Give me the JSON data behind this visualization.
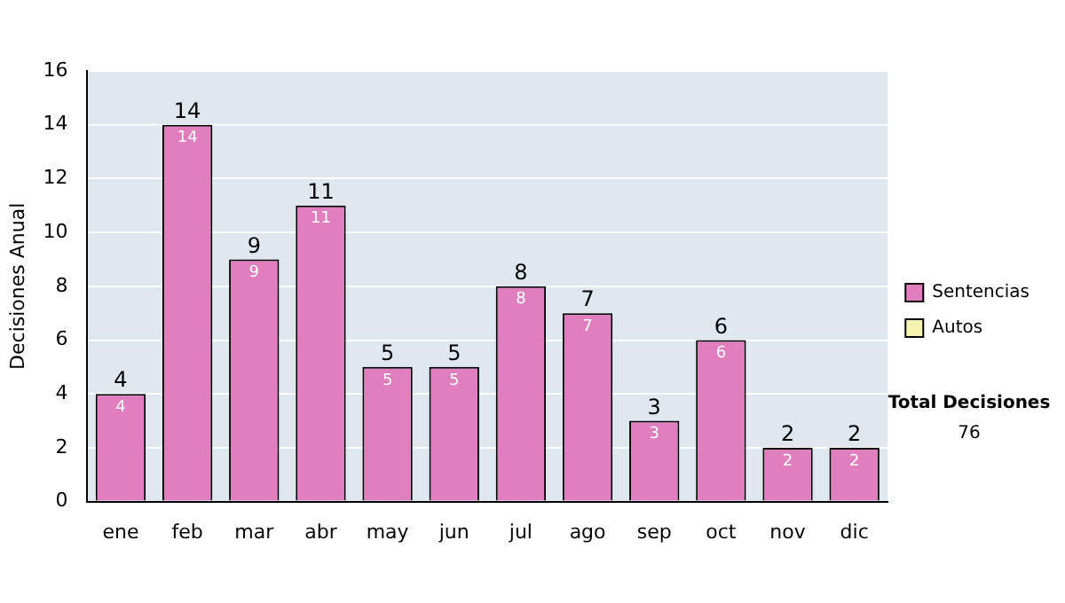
{
  "chart_data": {
    "type": "bar",
    "ylabel": "Decisiones Anual",
    "categories": [
      "ene",
      "feb",
      "mar",
      "abr",
      "may",
      "jun",
      "jul",
      "ago",
      "sep",
      "oct",
      "nov",
      "dic"
    ],
    "series": [
      {
        "name": "Sentencias",
        "color": "#e07ec0",
        "values": [
          4,
          14,
          9,
          11,
          5,
          5,
          8,
          7,
          3,
          6,
          2,
          2
        ]
      },
      {
        "name": "Autos",
        "color": "#f4f4b0",
        "values": [
          null,
          null,
          null,
          null,
          null,
          null,
          null,
          null,
          null,
          null,
          null,
          null
        ]
      }
    ],
    "stacked": true,
    "data_labels": true,
    "totals": [
      "4",
      "14",
      "9",
      "11",
      "5",
      "5",
      "8",
      "7",
      "3",
      "6",
      "2",
      "2"
    ],
    "ylim": [
      0,
      16
    ],
    "yticks": [
      0,
      2,
      4,
      6,
      8,
      10,
      12,
      14,
      16
    ],
    "grid": "y",
    "legend": "right",
    "annotations": [
      "Total Decisiones",
      "76"
    ]
  }
}
